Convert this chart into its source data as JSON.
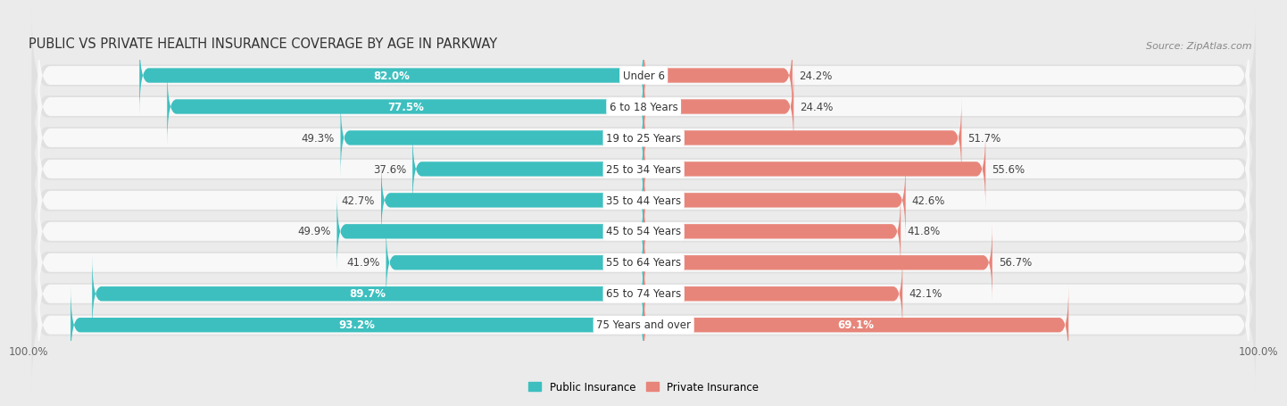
{
  "title": "PUBLIC VS PRIVATE HEALTH INSURANCE COVERAGE BY AGE IN PARKWAY",
  "source": "Source: ZipAtlas.com",
  "categories": [
    "Under 6",
    "6 to 18 Years",
    "19 to 25 Years",
    "25 to 34 Years",
    "35 to 44 Years",
    "45 to 54 Years",
    "55 to 64 Years",
    "65 to 74 Years",
    "75 Years and over"
  ],
  "public_values": [
    82.0,
    77.5,
    49.3,
    37.6,
    42.7,
    49.9,
    41.9,
    89.7,
    93.2
  ],
  "private_values": [
    24.2,
    24.4,
    51.7,
    55.6,
    42.6,
    41.8,
    56.7,
    42.1,
    69.1
  ],
  "public_color": "#3dbfbf",
  "private_color": "#e8857a",
  "public_label": "Public Insurance",
  "private_label": "Private Insurance",
  "background_color": "#ebebeb",
  "row_bg_color": "#e0e0e0",
  "bar_bg_color": "#f8f8f8",
  "max_value": 100.0,
  "title_fontsize": 10.5,
  "label_fontsize": 8.5,
  "tick_fontsize": 8.5,
  "source_fontsize": 8,
  "value_label_threshold": 60
}
